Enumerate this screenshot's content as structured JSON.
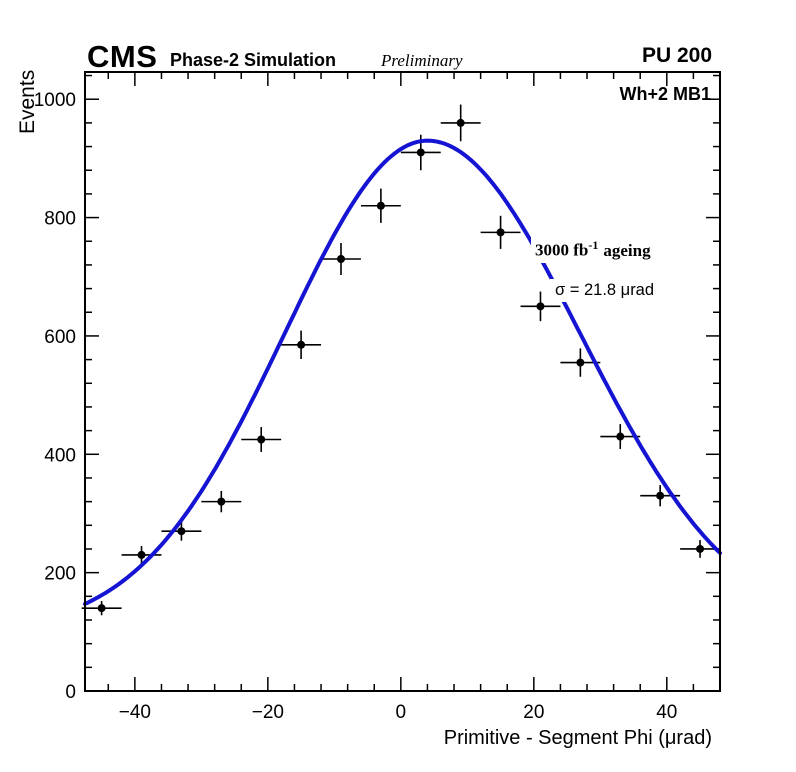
{
  "header": {
    "experiment": "CMS",
    "label": "Phase-2 Simulation",
    "sublabel": "Preliminary",
    "pileup": "PU 200"
  },
  "plot": {
    "region_label": "Wh+2 MB1",
    "lumi_prefix": "3000 fb",
    "lumi_sup": "-1",
    "lumi_suffix": "ageing",
    "sigma_text": "σ = 21.8 μrad"
  },
  "chart_data": {
    "type": "scatter",
    "title": "",
    "xlabel": "Primitive - Segment Phi (μrad)",
    "ylabel": "Events",
    "xlim": [
      -47.5,
      48
    ],
    "ylim": [
      0,
      1046
    ],
    "grid": false,
    "legend": false,
    "xticks": {
      "major": [
        -40,
        -20,
        0,
        20,
        40
      ],
      "labels": [
        "−40",
        "−20",
        "0",
        "20",
        "40"
      ],
      "minor_step": 4
    },
    "yticks": {
      "major": [
        0,
        200,
        400,
        600,
        800,
        1000
      ],
      "labels": [
        "0",
        "200",
        "400",
        "600",
        "800",
        "1000"
      ],
      "minor_step": 40
    },
    "x_halfwidth": 3,
    "marker_color": "#000000",
    "points": [
      {
        "x": -45,
        "y": 140,
        "ey": 12
      },
      {
        "x": -39,
        "y": 230,
        "ey": 15
      },
      {
        "x": -33,
        "y": 270,
        "ey": 16
      },
      {
        "x": -27,
        "y": 320,
        "ey": 18
      },
      {
        "x": -21,
        "y": 425,
        "ey": 21
      },
      {
        "x": -15,
        "y": 585,
        "ey": 24
      },
      {
        "x": -9,
        "y": 730,
        "ey": 27
      },
      {
        "x": -3,
        "y": 820,
        "ey": 29
      },
      {
        "x": 3,
        "y": 910,
        "ey": 30
      },
      {
        "x": 9,
        "y": 960,
        "ey": 31
      },
      {
        "x": 15,
        "y": 775,
        "ey": 28
      },
      {
        "x": 21,
        "y": 650,
        "ey": 25
      },
      {
        "x": 27,
        "y": 555,
        "ey": 24
      },
      {
        "x": 33,
        "y": 430,
        "ey": 21
      },
      {
        "x": 39,
        "y": 330,
        "ey": 18
      },
      {
        "x": 45,
        "y": 240,
        "ey": 15
      }
    ],
    "fit": {
      "shape": "gaussian",
      "amplitude": 830,
      "offset": 100,
      "mean": 4,
      "sigma_left": 21.5,
      "sigma_right": 23,
      "sigma_reported": 21.8,
      "color": "#1414d2",
      "width": 4
    }
  }
}
